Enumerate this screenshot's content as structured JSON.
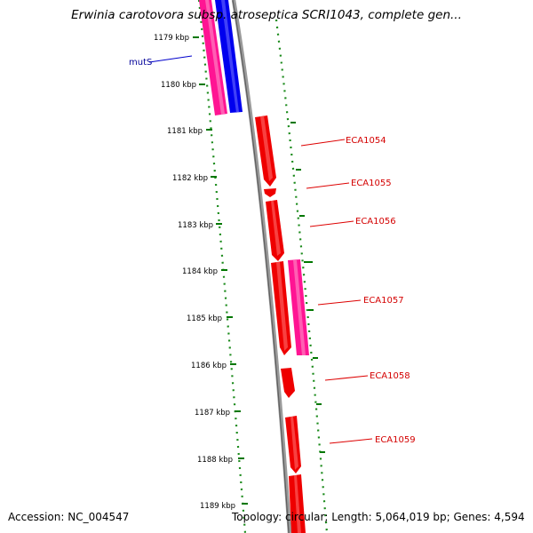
{
  "title": "Erwinia carotovora subsp. atroseptica SCRI1043, complete gen...",
  "accession": "Accession: NC_004547",
  "summary": "Topology: circular; Length: 5,064,019 bp; Genes: 4,594",
  "colors": {
    "tick": "#006600",
    "backbone": "#808080",
    "gene_red": "#ee0000",
    "gene_magenta": "#ff1493",
    "gene_blue": "#0000ee",
    "label_red": "#d40000",
    "label_blue": "#000099"
  },
  "ruler": {
    "ticks": [
      "1179 kbp",
      "1180 kbp",
      "1181 kbp",
      "1182 kbp",
      "1183 kbp",
      "1184 kbp",
      "1185 kbp",
      "1186 kbp",
      "1187 kbp",
      "1188 kbp",
      "1189 kbp"
    ]
  },
  "genes": [
    {
      "label": "mutS",
      "color": "blue"
    },
    {
      "label": "ECA1054",
      "color": "red"
    },
    {
      "label": "ECA1055",
      "color": "red"
    },
    {
      "label": "ECA1056",
      "color": "red"
    },
    {
      "label": "ECA1057",
      "color": "red"
    },
    {
      "label": "ECA1058",
      "color": "red"
    },
    {
      "label": "ECA1059",
      "color": "red"
    }
  ]
}
